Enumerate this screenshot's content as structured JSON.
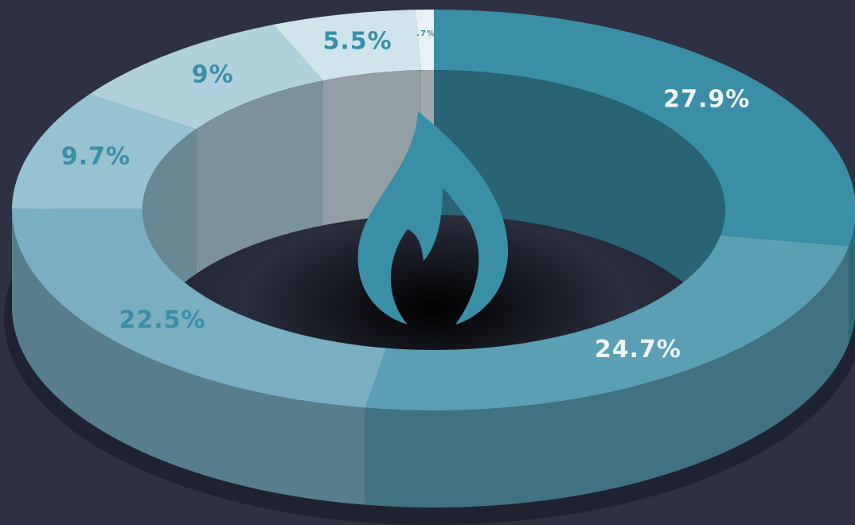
{
  "chart_data": {
    "type": "pie",
    "donut": true,
    "values": [
      27.9,
      24.7,
      22.5,
      9.7,
      9,
      5.5,
      0.7
    ],
    "value_labels": [
      "27.9%",
      "24.7%",
      "22.5%",
      "9.7%",
      "9%",
      "5.5%",
      ".7%"
    ],
    "colors": [
      "#3a8fa6",
      "#5a9fb3",
      "#79afc0",
      "#97c2d0",
      "#b0d1dc",
      "#d0e4eb",
      "#e8f2f6"
    ]
  }
}
